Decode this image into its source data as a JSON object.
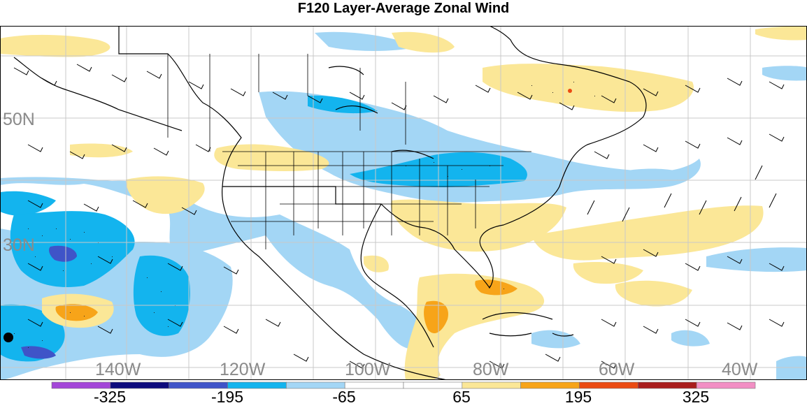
{
  "title": "F120 Layer-Average Zonal Wind",
  "map": {
    "lat_labels": [
      "50N",
      "30N"
    ],
    "lon_labels": [
      "140W",
      "120W",
      "100W",
      "80W",
      "60W",
      "40W"
    ]
  },
  "colorbar": {
    "colors": [
      "#a346d8",
      "#0d0b7d",
      "#3f54c8",
      "#13b4ee",
      "#a3d6f5",
      "#ffffff",
      "#ffffff",
      "#fbe797",
      "#f7a419",
      "#eb4b12",
      "#a91d1d",
      "#f28fc4"
    ],
    "tick_labels": [
      "-325",
      "-195",
      "-65",
      "65",
      "195",
      "325"
    ]
  }
}
